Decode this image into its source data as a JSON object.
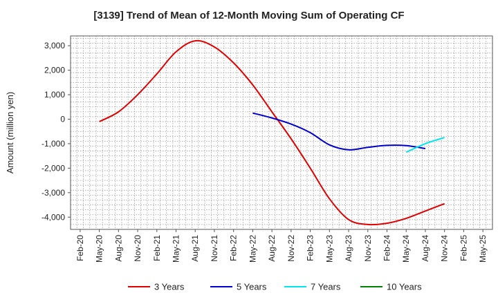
{
  "chart_data": {
    "type": "line",
    "title": "[3139]  Trend of Mean of 12-Month Moving Sum of Operating CF",
    "xlabel": "",
    "ylabel": "Amount (million yen)",
    "ylim": [
      -4500,
      3400
    ],
    "yticks": [
      3000,
      2000,
      1000,
      0,
      -1000,
      -2000,
      -3000,
      -4000
    ],
    "ytick_labels": [
      "3,000",
      "2,000",
      "1,000",
      "0",
      "-1,000",
      "-2,000",
      "-3,000",
      "-4,000"
    ],
    "grid": true,
    "legend_position": "bottom",
    "categories": [
      "Feb-20",
      "May-20",
      "Aug-20",
      "Nov-20",
      "Feb-21",
      "May-21",
      "Aug-21",
      "Nov-21",
      "Feb-22",
      "May-22",
      "Aug-22",
      "Nov-22",
      "Feb-23",
      "May-23",
      "Aug-23",
      "Nov-23",
      "Feb-24",
      "May-24",
      "Aug-24",
      "Nov-24",
      "Feb-25",
      "May-25"
    ],
    "series": [
      {
        "name": "3 Years",
        "color": "#e00000",
        "values": [
          null,
          -100,
          300,
          1000,
          1850,
          2750,
          3200,
          2950,
          2300,
          1400,
          300,
          -800,
          -2000,
          -3250,
          -4100,
          -4300,
          -4250,
          -4050,
          -3750,
          -3450,
          null,
          null
        ]
      },
      {
        "name": "5 Years",
        "color": "#0000cc",
        "values": [
          null,
          null,
          null,
          null,
          null,
          null,
          null,
          null,
          null,
          250,
          50,
          -200,
          -550,
          -1050,
          -1250,
          -1150,
          -1070,
          -1080,
          -1200,
          null,
          null,
          null
        ]
      },
      {
        "name": "7 Years",
        "color": "#00e5ee",
        "values": [
          null,
          null,
          null,
          null,
          null,
          null,
          null,
          null,
          null,
          null,
          null,
          null,
          null,
          null,
          null,
          null,
          null,
          -1350,
          -1000,
          -750,
          null,
          null
        ]
      },
      {
        "name": "10 Years",
        "color": "#008000",
        "values": [
          null,
          null,
          null,
          null,
          null,
          null,
          null,
          null,
          null,
          null,
          null,
          null,
          null,
          null,
          null,
          null,
          null,
          null,
          null,
          null,
          null,
          null
        ]
      }
    ]
  }
}
